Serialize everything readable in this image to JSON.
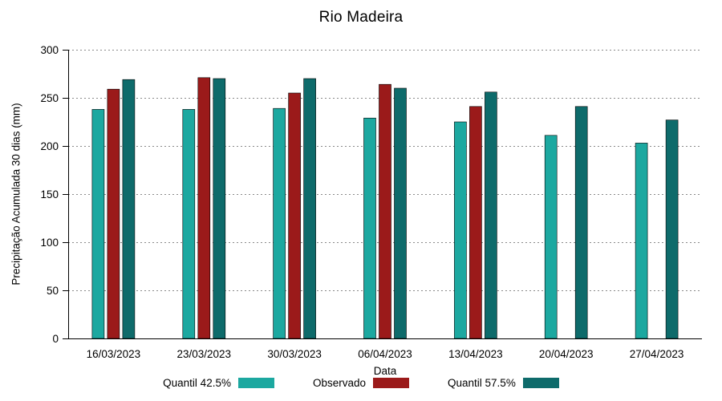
{
  "chart_data": {
    "type": "bar",
    "title": "Rio Madeira",
    "xlabel": "Data",
    "ylabel": "Precipitação Acumulada 30 dias (mm)",
    "ylim": [
      0,
      300
    ],
    "yticks": [
      0,
      50,
      100,
      150,
      200,
      250,
      300
    ],
    "grid": true,
    "legend_position": "bottom",
    "categories": [
      "16/03/2023",
      "23/03/2023",
      "30/03/2023",
      "06/04/2023",
      "13/04/2023",
      "20/04/2023",
      "27/04/2023"
    ],
    "series": [
      {
        "name": "Quantil 42.5%",
        "color": "#1CA8A0",
        "values": [
          238,
          238,
          239,
          229,
          225,
          211,
          203
        ]
      },
      {
        "name": "Observado",
        "color": "#9B1A1A",
        "values": [
          259,
          271,
          255,
          264,
          241,
          null,
          null
        ]
      },
      {
        "name": "Quantil 57.5%",
        "color": "#0E6B6B",
        "values": [
          269,
          270,
          270,
          260,
          256,
          241,
          227
        ]
      }
    ]
  }
}
